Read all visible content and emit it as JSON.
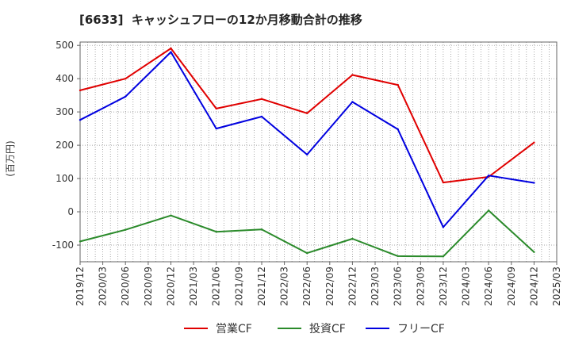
{
  "chart_data": {
    "type": "line",
    "title": "[6633]  キャッシュフローの12か月移動合計の推移",
    "xlabel": "",
    "ylabel": "(百万円)",
    "ylim": [
      -150,
      510
    ],
    "yticks": [
      500,
      400,
      300,
      200,
      100,
      0,
      -100
    ],
    "x_tick_labels": [
      "2019/12",
      "2020/03",
      "2020/06",
      "2020/09",
      "2020/12",
      "2021/03",
      "2021/06",
      "2021/09",
      "2021/12",
      "2022/03",
      "2022/06",
      "2022/09",
      "2022/12",
      "2023/03",
      "2023/06",
      "2023/09",
      "2023/12",
      "2024/03",
      "2024/06",
      "2024/09",
      "2024/12",
      "2025/03"
    ],
    "x": [
      "2019/12",
      "2020/06",
      "2020/12",
      "2021/06",
      "2021/12",
      "2022/06",
      "2022/12",
      "2023/06",
      "2023/12",
      "2024/06",
      "2024/12"
    ],
    "series": [
      {
        "name": "営業CF",
        "color": "#e00000",
        "values": [
          365,
          400,
          491,
          310,
          339,
          296,
          411,
          381,
          88,
          105,
          208
        ]
      },
      {
        "name": "投資CF",
        "color": "#2a8a2a",
        "values": [
          -89,
          -54,
          -11,
          -60,
          -53,
          -124,
          -81,
          -133,
          -134,
          4,
          -121
        ]
      },
      {
        "name": "フリーCF",
        "color": "#0000e0",
        "values": [
          276,
          346,
          480,
          250,
          286,
          172,
          330,
          248,
          -46,
          109,
          87
        ]
      }
    ],
    "grid": true,
    "legend": "bottom-center"
  }
}
